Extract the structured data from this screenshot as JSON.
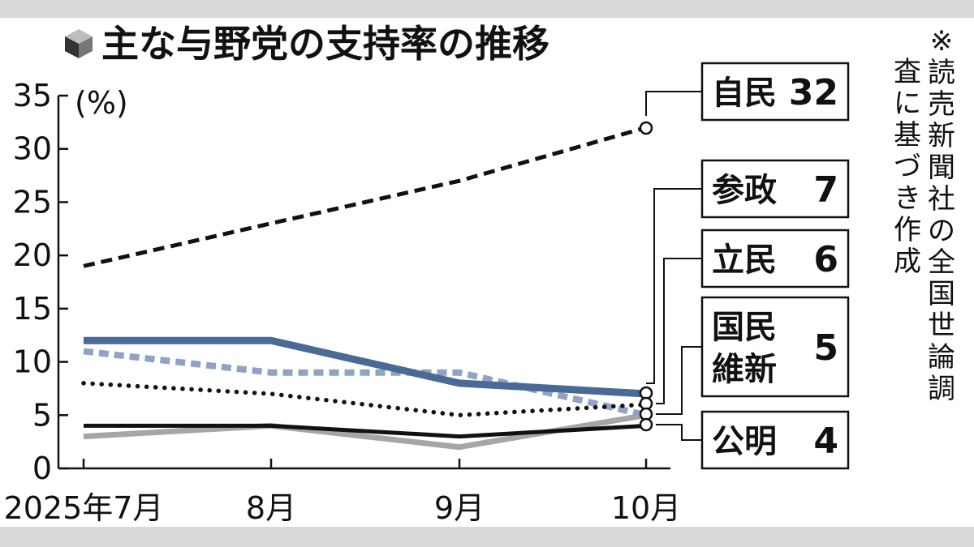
{
  "title": "主な与野党の支持率の推移",
  "note": "※読売新聞社の全国世論調査に基づき作成",
  "chart_data": {
    "type": "line",
    "title": "主な与野党の支持率の推移",
    "ylabel": "(%)",
    "ylim": [
      0,
      35
    ],
    "yticks": [
      "0",
      "5",
      "10",
      "15",
      "20",
      "25",
      "30",
      "35"
    ],
    "categories": [
      "2025年7月",
      "8月",
      "9月",
      "10月"
    ],
    "grid": false,
    "legend": "right (direct labels)",
    "series": [
      {
        "name": "自民",
        "values": [
          19,
          23,
          27,
          32
        ],
        "end_label": "32",
        "color": "#111111",
        "style": "dashed"
      },
      {
        "name": "参政",
        "values": [
          12,
          12,
          8,
          7
        ],
        "end_label": "7",
        "color": "#4a6a96",
        "style": "solid"
      },
      {
        "name": "立民",
        "values": [
          8,
          7,
          5,
          6
        ],
        "end_label": "6",
        "color": "#111111",
        "style": "dotted"
      },
      {
        "name": "国民維新",
        "values": [
          11,
          9,
          9,
          5
        ],
        "end_label": "5",
        "color": "#8fa3c4",
        "style": "dashed"
      },
      {
        "name": "公明",
        "values": [
          4,
          4,
          3,
          4
        ],
        "end_label": "4",
        "color": "#111111",
        "style": "solid"
      },
      {
        "name": "",
        "values": [
          3,
          4,
          2,
          5
        ],
        "color": "#a6a6a6",
        "style": "solid"
      }
    ],
    "labels": [
      {
        "lines": [
          "自民"
        ],
        "value": "32"
      },
      {
        "lines": [
          "参政"
        ],
        "value": "7"
      },
      {
        "lines": [
          "立民"
        ],
        "value": "6"
      },
      {
        "lines": [
          "国民",
          "維新"
        ],
        "value": "5"
      },
      {
        "lines": [
          "公明"
        ],
        "value": "4"
      }
    ]
  }
}
